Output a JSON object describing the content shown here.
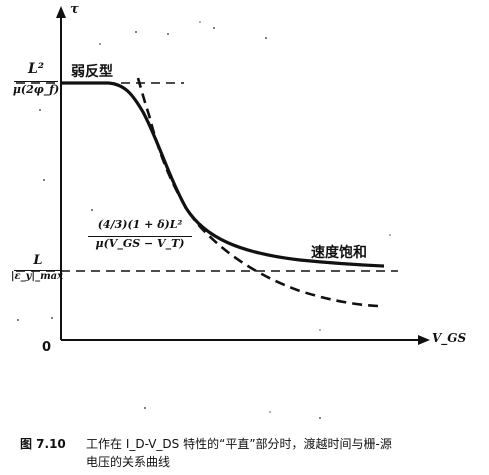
{
  "figure": {
    "y_axis_label": "τ",
    "x_axis_label": "V_GS",
    "origin_label": "0",
    "y_mark_top": {
      "numerator": "L²",
      "denominator": "μ(2φ_f)"
    },
    "y_mark_bottom": {
      "numerator": "L",
      "denominator": "|ε_y|_max"
    },
    "curve_label_weak": "弱反型",
    "curve_label_velocity": "速度饱和",
    "formula": {
      "numerator": "(4/3)(1 + δ)L²",
      "denominator": "μ(V_GS − V_T)"
    }
  },
  "caption": {
    "number": "图 7.10",
    "line1": "工作在 I_D-V_DS 特性的“平直”部分时，渡越时间与栅-源",
    "line2": "电压的关系曲线"
  }
}
